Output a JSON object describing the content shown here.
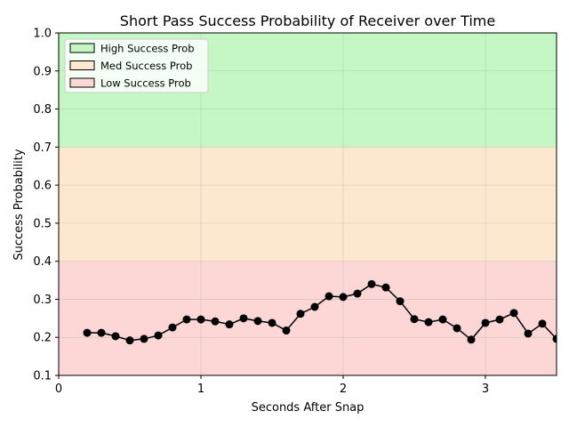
{
  "chart_data": {
    "type": "line",
    "title": "Short Pass Success Probability of Receiver over Time",
    "xlabel": "Seconds After Snap",
    "ylabel": "Success Probability",
    "xlim": [
      0,
      3.5
    ],
    "ylim": [
      0.1,
      1.0
    ],
    "xticks": [
      "0",
      "1",
      "2",
      "3"
    ],
    "yticks": [
      "0.1",
      "0.2",
      "0.3",
      "0.4",
      "0.5",
      "0.6",
      "0.7",
      "0.8",
      "0.9",
      "1.0"
    ],
    "grid": true,
    "legend_position": "top-left",
    "bands": [
      {
        "label": "High Success Prob",
        "from": 0.7,
        "to": 1.0,
        "color": "#c5f7c5"
      },
      {
        "label": "Med Success Prob",
        "from": 0.4,
        "to": 0.7,
        "color": "#fde8cf"
      },
      {
        "label": "Low Success Prob",
        "from": 0.1,
        "to": 0.4,
        "color": "#fdd7d6"
      }
    ],
    "series": [
      {
        "color": "#000000",
        "x": [
          0.2,
          0.3,
          0.4,
          0.5,
          0.6,
          0.7,
          0.8,
          0.9,
          1.0,
          1.1,
          1.2,
          1.3,
          1.4,
          1.5,
          1.6,
          1.7,
          1.8,
          1.9,
          2.0,
          2.1,
          2.2,
          2.3,
          2.4,
          2.5,
          2.6,
          2.7,
          2.8,
          2.9,
          3.0,
          3.1,
          3.2,
          3.3,
          3.4,
          3.5
        ],
        "y": [
          0.212,
          0.212,
          0.203,
          0.192,
          0.196,
          0.205,
          0.226,
          0.247,
          0.247,
          0.242,
          0.234,
          0.25,
          0.243,
          0.238,
          0.218,
          0.262,
          0.28,
          0.308,
          0.306,
          0.315,
          0.34,
          0.331,
          0.295,
          0.248,
          0.24,
          0.247,
          0.224,
          0.194,
          0.238,
          0.247,
          0.264,
          0.21,
          0.236,
          0.196
        ]
      }
    ]
  }
}
